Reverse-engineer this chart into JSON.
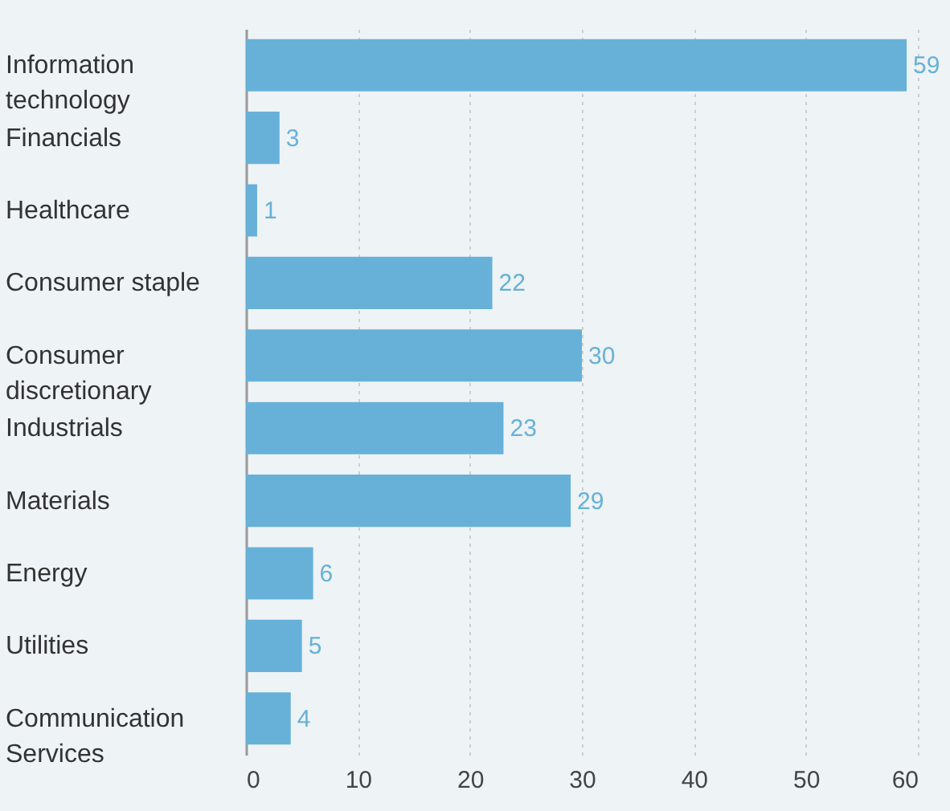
{
  "chart_data": {
    "type": "bar",
    "orientation": "horizontal",
    "categories": [
      "Information technology",
      "Financials",
      "Healthcare",
      "Consumer staple",
      "Consumer discretionary",
      "Industrials",
      "Materials",
      "Energy",
      "Utilities",
      "Communication Services"
    ],
    "values": [
      59,
      3,
      1,
      22,
      30,
      23,
      29,
      6,
      5,
      4
    ],
    "color": "#67b1d9",
    "xlim": [
      0,
      60
    ],
    "xticks": [
      0,
      10,
      20,
      30,
      40,
      50,
      60
    ],
    "grid": "x",
    "data_labels": true
  }
}
